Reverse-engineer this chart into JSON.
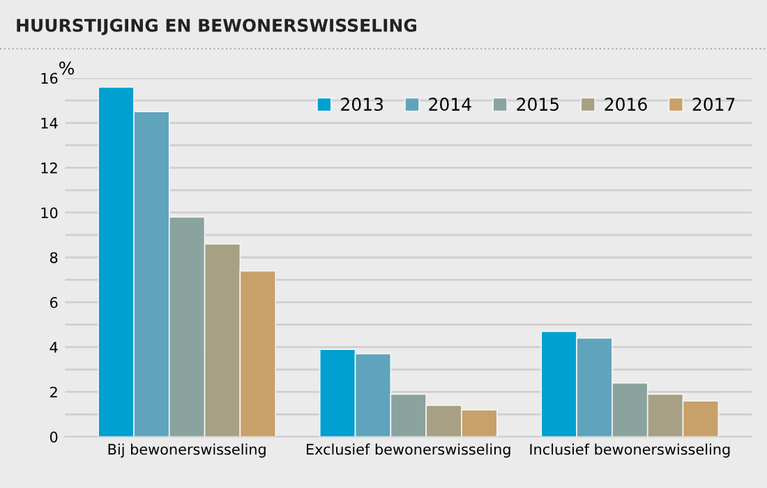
{
  "chart_data": {
    "type": "bar",
    "title": "HUURSTIJGING EN BEWONERSWISSELING",
    "ylabel": "%",
    "categories": [
      "Bij bewonerswisseling",
      "Exclusief bewonerswisseling",
      "Inclusief bewonerswisseling"
    ],
    "series": [
      {
        "name": "2013",
        "color": "#00a0d0",
        "values": [
          15.6,
          3.9,
          4.7
        ]
      },
      {
        "name": "2014",
        "color": "#5fa3bd",
        "values": [
          14.5,
          3.7,
          4.4
        ]
      },
      {
        "name": "2015",
        "color": "#8aa39f",
        "values": [
          9.8,
          1.9,
          2.4
        ]
      },
      {
        "name": "2016",
        "color": "#a8a084",
        "values": [
          8.6,
          1.4,
          1.9
        ]
      },
      {
        "name": "2017",
        "color": "#c8a06a",
        "values": [
          7.4,
          1.2,
          1.6
        ]
      }
    ],
    "ylim": [
      0,
      16
    ],
    "yticks": [
      0,
      {
        "value": 1,
        "label": null
      },
      2,
      {
        "value": 3,
        "label": null
      },
      4,
      {
        "value": 5,
        "label": null
      },
      6,
      {
        "value": 7,
        "label": null
      },
      8,
      {
        "value": 9,
        "label": null
      },
      10,
      {
        "value": 11,
        "label": null
      },
      12,
      {
        "value": 13,
        "label": null
      },
      14,
      {
        "value": 15,
        "label": null
      },
      16
    ],
    "grid": "y",
    "legend": "top right"
  }
}
